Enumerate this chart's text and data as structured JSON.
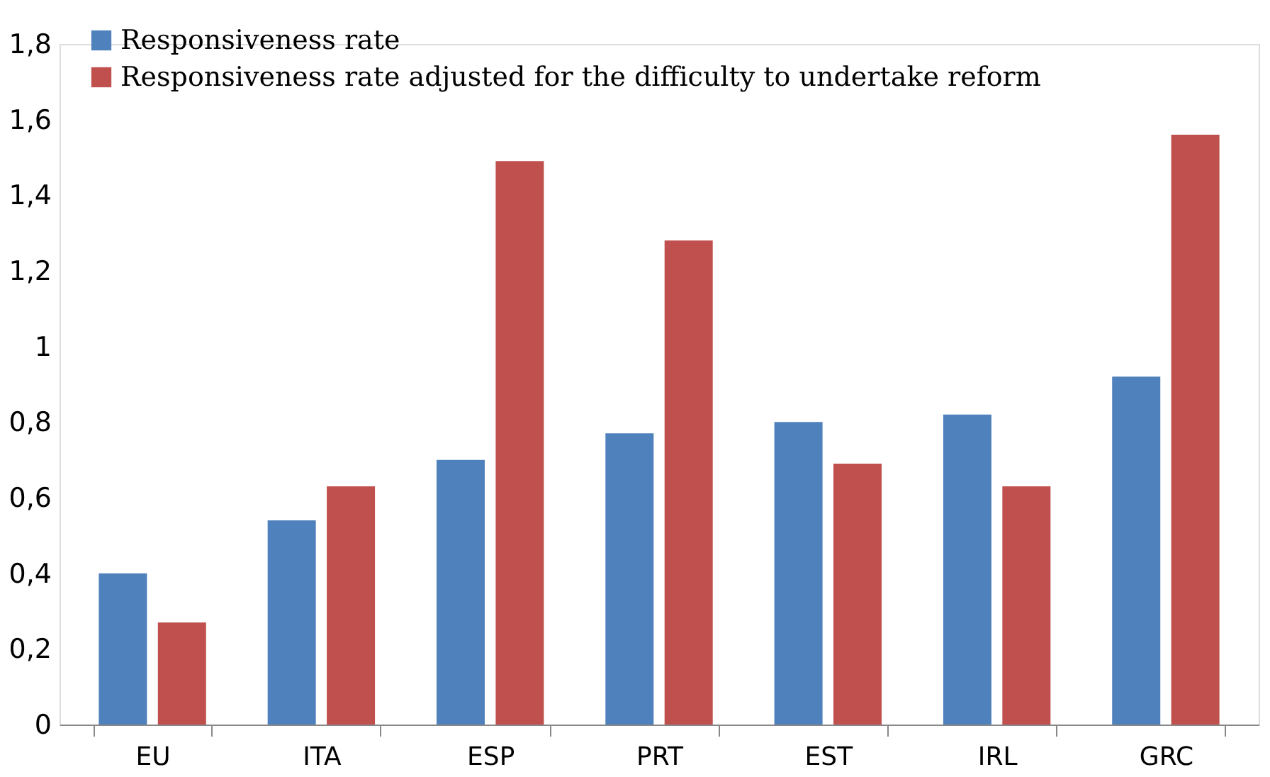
{
  "chart_data": {
    "type": "bar",
    "categories": [
      "EU",
      "ITA",
      "ESP",
      "PRT",
      "EST",
      "IRL",
      "GRC"
    ],
    "series": [
      {
        "name": "Responsiveness rate",
        "color": "#4f81bd",
        "values": [
          0.4,
          0.54,
          0.7,
          0.77,
          0.8,
          0.82,
          0.92
        ]
      },
      {
        "name": "Responsiveness rate adjusted for the difficulty to undertake reform",
        "color": "#c0504d",
        "values": [
          0.27,
          0.63,
          1.49,
          1.28,
          0.69,
          0.63,
          1.56
        ]
      }
    ],
    "ylim": [
      0,
      1.8
    ],
    "yticks": [
      0,
      {
        "value": 0.2,
        "label": "0,2"
      },
      {
        "value": 0.4,
        "label": "0,4"
      },
      {
        "value": 0.6,
        "label": "0,6"
      },
      {
        "value": 0.8,
        "label": "0,8"
      },
      1,
      {
        "value": 1.2,
        "label": "1,2"
      },
      {
        "value": 1.4,
        "label": "1,4"
      },
      {
        "value": 1.6,
        "label": "1,6"
      },
      {
        "value": 1.8,
        "label": "1,8"
      }
    ],
    "grid": false,
    "legend": "top left"
  }
}
